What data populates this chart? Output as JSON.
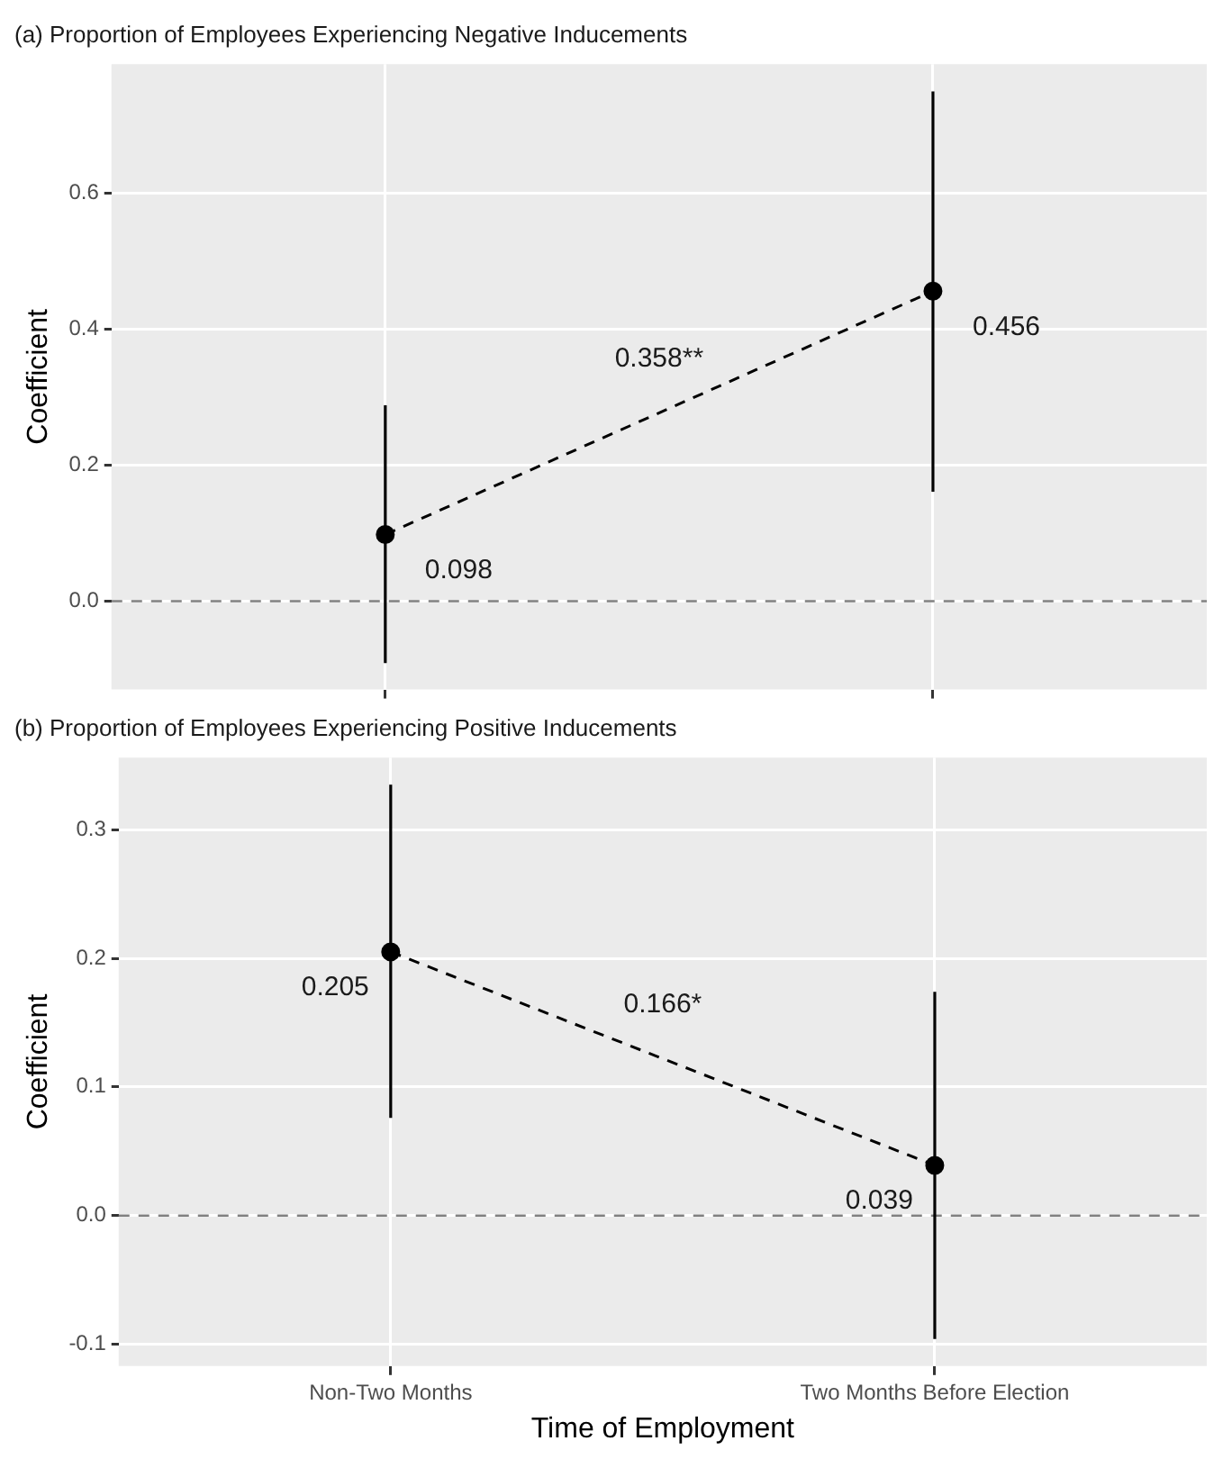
{
  "chart_data": [
    {
      "type": "line",
      "title": "(a) Proportion of Employees Experiencing Negative Inducements",
      "ylabel": "Coefficient",
      "categories": [
        null,
        null
      ],
      "series": [
        {
          "color": "#000000",
          "values": [
            0.098,
            0.456
          ],
          "errors": [
            [
              -0.091,
              0.288
            ],
            [
              0.161,
              0.75
            ]
          ]
        }
      ],
      "ylim": [
        -0.13,
        0.79
      ],
      "yticks": [
        {
          "value": 0,
          "label": "0.0"
        },
        0.2,
        0.4,
        0.6
      ],
      "grid": true,
      "tick_labels": "y",
      "marker": "circle",
      "line_style": "dashed",
      "data_labels": true,
      "ref_lines": [
        {
          "axis": "y",
          "value": 0,
          "color": "#808080",
          "line_style": "dashed"
        }
      ],
      "annotations": [
        "0.358**"
      ]
    },
    {
      "type": "line",
      "title": "(b) Proportion of Employees Experiencing Positive Inducements",
      "xlabel": "Time of Employment",
      "ylabel": "Coefficient",
      "categories": [
        "Non-Two Months",
        "Two Months Before Election"
      ],
      "series": [
        {
          "color": "#000000",
          "values": [
            0.205,
            0.039
          ],
          "errors": [
            [
              0.076,
              0.335
            ],
            [
              -0.096,
              0.174
            ]
          ]
        }
      ],
      "ylim": [
        -0.117,
        0.356
      ],
      "yticks": [
        -0.1,
        {
          "value": 0,
          "label": "0.0"
        },
        0.1,
        0.2,
        0.3
      ],
      "grid": true,
      "marker": "circle",
      "line_style": "dashed",
      "data_labels": true,
      "ref_lines": [
        {
          "axis": "y",
          "value": 0,
          "color": "#808080",
          "line_style": "dashed"
        }
      ],
      "annotations": [
        "0.166*"
      ]
    }
  ]
}
